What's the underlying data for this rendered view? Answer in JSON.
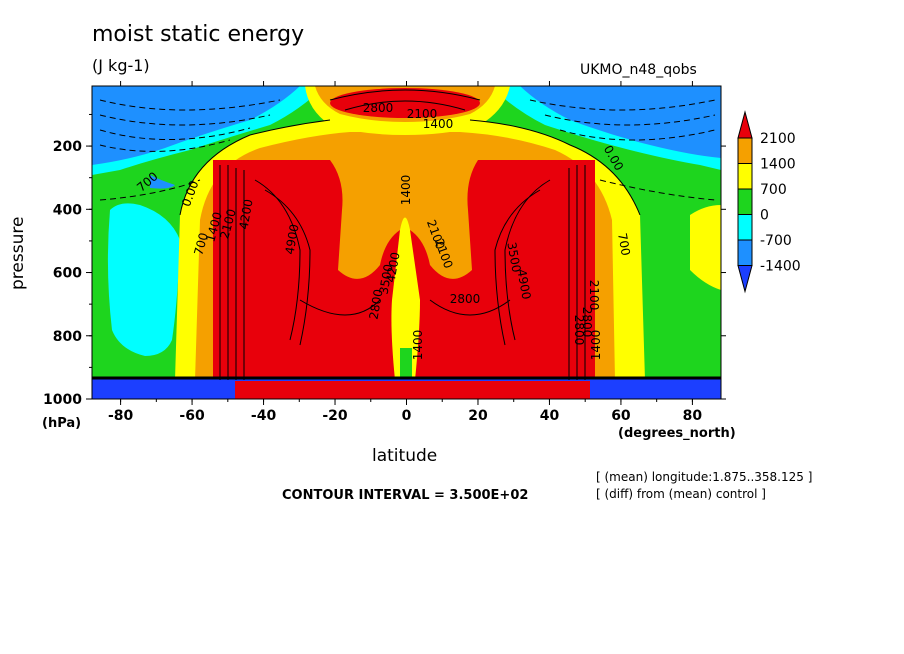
{
  "chart_data": {
    "type": "heatmap",
    "title": "moist static energy",
    "units": "(J kg-1)",
    "run_label": "UKMO_n48_qobs",
    "xlabel": "latitude",
    "xlabel_units": "(degrees_north)",
    "ylabel": "pressure",
    "ylabel_units": "(hPa)",
    "xlim": [
      -88,
      88
    ],
    "ylim": [
      1000,
      10
    ],
    "x_ticks": [
      "-80",
      "-60",
      "-40",
      "-20",
      "0",
      "20",
      "40",
      "60",
      "80"
    ],
    "y_ticks": [
      "200",
      "400",
      "600",
      "800",
      "1000"
    ],
    "contour_interval": "CONTOUR INTERVAL = 3.500E+02",
    "notes": [
      "[ (mean) longitude:1.875..358.125 ]",
      "[ (diff) from (mean) control ]"
    ],
    "colorbar": {
      "labels": [
        "2100",
        "1400",
        "700",
        "0",
        "-700",
        "-1400"
      ],
      "colors": [
        "#e8000b",
        "#f5a000",
        "#ffff00",
        "#1ed51e",
        "#00ffff",
        "#1e90ff",
        "#1c3fff"
      ]
    },
    "contour_labels": [
      "2800",
      "2100",
      "1400",
      "1400",
      "700",
      "0.00",
      "0.00",
      "700",
      "1400",
      "2100",
      "4900",
      "4200",
      "3500",
      "2800",
      "4900",
      "2100",
      "2800",
      "3500",
      "4200",
      "2800",
      "2100",
      "1400",
      "700",
      "2100",
      "1400",
      "2800"
    ]
  }
}
